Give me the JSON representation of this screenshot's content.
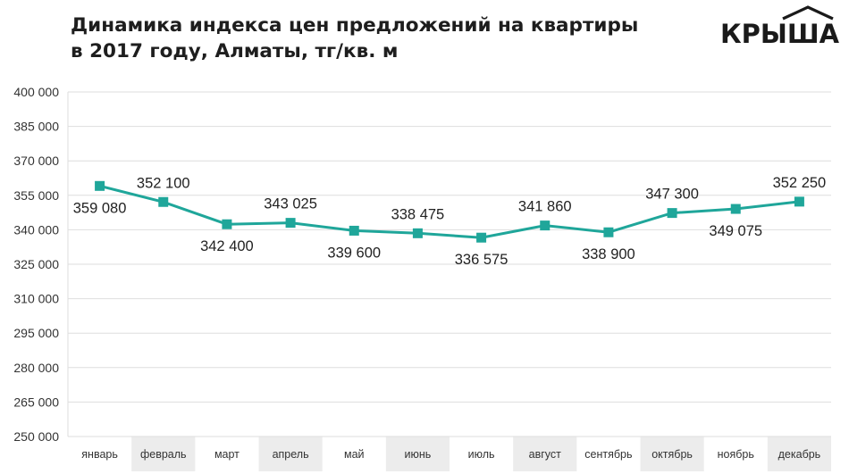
{
  "title_lines": [
    "Динамика индекса цен предложений на квартиры",
    "в 2017 году, Алматы, тг/кв. м"
  ],
  "logo_text": "КРЫША",
  "colors": {
    "series": "#1fa69a",
    "grid": "#dedede",
    "band": "#ececec",
    "text": "#1e1e1e"
  },
  "chart_data": {
    "type": "line",
    "title": "Динамика индекса цен предложений на квартиры в 2017 году, Алматы, тг/кв. м",
    "categories": [
      "январь",
      "февраль",
      "март",
      "апрель",
      "май",
      "июнь",
      "июль",
      "август",
      "сентябрь",
      "октябрь",
      "ноябрь",
      "декабрь"
    ],
    "values": [
      359080,
      352100,
      342400,
      343025,
      339600,
      338475,
      336575,
      341860,
      338900,
      347300,
      349075,
      352250
    ],
    "data_labels": [
      "359 080",
      "352 100",
      "342 400",
      "343 025",
      "339 600",
      "338 475",
      "336 575",
      "341 860",
      "338 900",
      "347 300",
      "349 075",
      "352 250"
    ],
    "ylim": [
      250000,
      400000
    ],
    "yticks": [
      250000,
      265000,
      280000,
      295000,
      310000,
      325000,
      340000,
      355000,
      370000,
      385000,
      400000
    ],
    "ytick_labels": [
      "250 000",
      "265 000",
      "280 000",
      "295 000",
      "310 000",
      "325 000",
      "340 000",
      "355 000",
      "370 000",
      "385 000",
      "400 000"
    ],
    "grid": true,
    "legend": "none"
  }
}
